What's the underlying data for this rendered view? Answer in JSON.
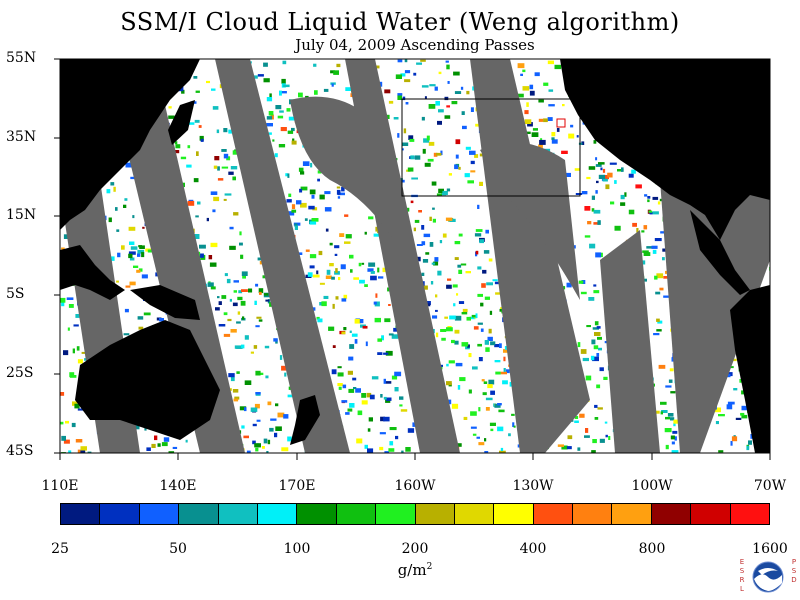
{
  "title": "SSM/I Cloud Liquid Water (Weng algorithm)",
  "subtitle": "July 04, 2009  Ascending Passes",
  "lat_labels": [
    "55N",
    "35N",
    "15N",
    "5S",
    "25S",
    "45S"
  ],
  "lon_labels": [
    "110E",
    "140E",
    "170E",
    "160W",
    "130W",
    "100W",
    "70W"
  ],
  "colorbar": {
    "colors": [
      "#001a80",
      "#0030c0",
      "#1060ff",
      "#089090",
      "#10c0c0",
      "#00f0f8",
      "#009000",
      "#10c010",
      "#20f020",
      "#b8b000",
      "#e0d800",
      "#ffff00",
      "#ff5010",
      "#ff8010",
      "#ffa010",
      "#900000",
      "#d00000",
      "#ff1010"
    ],
    "labels": [
      "25",
      "50",
      "100",
      "200",
      "400",
      "800",
      "1600"
    ],
    "units": "g/m",
    "units_sup": "2"
  },
  "logo": {
    "left_letters": [
      "E",
      "S",
      "R",
      "L"
    ],
    "right_letters": [
      "P",
      "S",
      "D"
    ],
    "name": "NOAA"
  },
  "colors": {
    "land": "#000000",
    "no_data": "#666666",
    "background": "#ffffff"
  }
}
